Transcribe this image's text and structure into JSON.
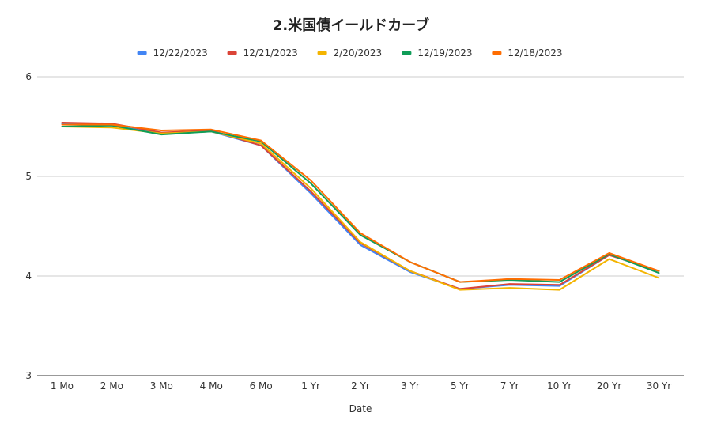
{
  "chart_data": {
    "type": "line",
    "title": "2.米国債イールドカーブ",
    "xlabel": "Date",
    "ylabel": "",
    "categories": [
      "1 Mo",
      "2 Mo",
      "3 Mo",
      "4 Mo",
      "6 Mo",
      "1 Yr",
      "2 Yr",
      "3 Yr",
      "5 Yr",
      "7 Yr",
      "10 Yr",
      "20 Yr",
      "30 Yr"
    ],
    "ylim": [
      3,
      6
    ],
    "yticks": [
      "3",
      "4",
      "5",
      "6"
    ],
    "grid": true,
    "legend_position": "top",
    "series": [
      {
        "name": "12/22/2023",
        "color": "#4285f4",
        "values": [
          5.53,
          5.51,
          5.43,
          5.45,
          5.31,
          4.83,
          4.31,
          4.04,
          3.87,
          3.91,
          3.9,
          4.21,
          4.05
        ]
      },
      {
        "name": "12/21/2023",
        "color": "#db4437",
        "values": [
          5.54,
          5.53,
          5.44,
          5.46,
          5.31,
          4.85,
          4.33,
          4.05,
          3.87,
          3.92,
          3.91,
          4.21,
          4.05
        ]
      },
      {
        "name": "2/20/2023",
        "color": "#f4b400",
        "values": [
          5.5,
          5.49,
          5.43,
          5.45,
          5.33,
          4.88,
          4.34,
          4.05,
          3.86,
          3.88,
          3.86,
          4.17,
          3.98
        ]
      },
      {
        "name": "12/19/2023",
        "color": "#0f9d58",
        "values": [
          5.5,
          5.51,
          5.42,
          5.45,
          5.35,
          4.93,
          4.41,
          4.14,
          3.94,
          3.96,
          3.94,
          4.22,
          4.03
        ]
      },
      {
        "name": "12/18/2023",
        "color": "#ff6d01",
        "values": [
          5.52,
          5.52,
          5.46,
          5.47,
          5.36,
          4.96,
          4.43,
          4.14,
          3.94,
          3.97,
          3.96,
          4.23,
          4.05
        ]
      }
    ]
  }
}
